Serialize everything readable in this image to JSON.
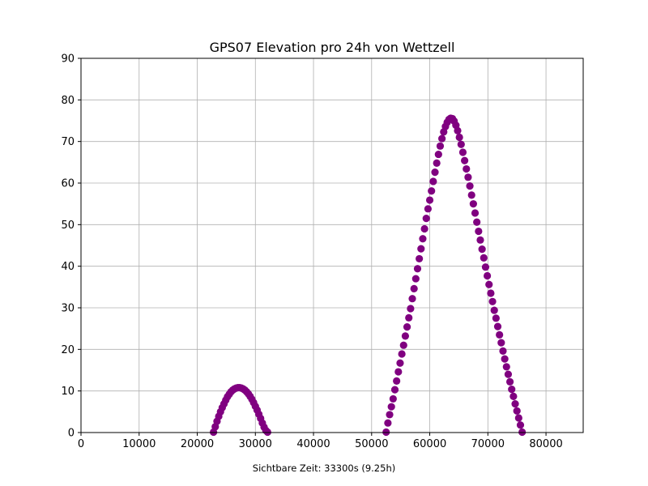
{
  "chart_data": {
    "type": "scatter",
    "title": "GPS07 Elevation pro 24h von Wettzell",
    "xlabel": "",
    "ylabel": "",
    "footer_text": "Sichtbare Zeit: 33300s (9.25h)",
    "xlim": [
      0,
      86400
    ],
    "ylim": [
      0,
      90
    ],
    "x_ticks": [
      0,
      10000,
      20000,
      30000,
      40000,
      50000,
      60000,
      70000,
      80000
    ],
    "y_ticks": [
      0,
      10,
      20,
      30,
      40,
      50,
      60,
      70,
      80,
      90
    ],
    "grid": true,
    "marker_color": "#800080",
    "series": [
      {
        "segments": [
          {
            "x": [
              22800,
              23100,
              23400,
              23700,
              24000,
              24300,
              24600,
              24900,
              25200,
              25500,
              25800,
              26100,
              26400,
              26700,
              27000,
              27300,
              27600,
              27900,
              28200,
              28500,
              28800,
              29100,
              29400,
              29700,
              30000,
              30300,
              30600,
              30900,
              31200,
              31500,
              31800,
              32100
            ],
            "y": [
              0.1,
              1.4,
              2.7,
              3.9,
              5.0,
              6.0,
              6.9,
              7.8,
              8.6,
              9.2,
              9.8,
              10.2,
              10.5,
              10.7,
              10.8,
              10.8,
              10.7,
              10.5,
              10.2,
              9.8,
              9.3,
              8.7,
              8.0,
              7.2,
              6.3,
              5.4,
              4.4,
              3.4,
              2.3,
              1.3,
              0.5,
              0.1
            ]
          },
          {
            "x": [
              52500,
              52800,
              53100,
              53400,
              53700,
              54000,
              54300,
              54600,
              54900,
              55200,
              55500,
              55800,
              56100,
              56400,
              56700,
              57000,
              57300,
              57600,
              57900,
              58200,
              58500,
              58800,
              59100,
              59400,
              59700,
              60000,
              60300,
              60600,
              60900,
              61200,
              61500,
              61800,
              62100,
              62400,
              62700,
              63000,
              63300,
              63600,
              63900,
              64200,
              64500,
              64800,
              65100,
              65400,
              65700,
              66000,
              66300,
              66600,
              66900,
              67200,
              67500,
              67800,
              68100,
              68400,
              68700,
              69000,
              69300,
              69600,
              69900,
              70200,
              70500,
              70800,
              71100,
              71400,
              71700,
              72000,
              72300,
              72600,
              72900,
              73200,
              73500,
              73800,
              74100,
              74400,
              74700,
              75000,
              75300,
              75600,
              75900
            ],
            "y": [
              0.1,
              2.3,
              4.3,
              6.2,
              8.1,
              10.3,
              12.4,
              14.6,
              16.7,
              18.9,
              21.0,
              23.2,
              25.4,
              27.6,
              29.8,
              32.2,
              34.6,
              37.0,
              39.4,
              41.8,
              44.2,
              46.6,
              49.0,
              51.5,
              53.8,
              55.9,
              58.1,
              60.4,
              62.6,
              64.8,
              66.9,
              68.9,
              70.7,
              72.3,
              73.6,
              74.6,
              75.3,
              75.6,
              75.5,
              74.9,
              73.9,
              72.6,
              71.0,
              69.3,
              67.4,
              65.4,
              63.4,
              61.4,
              59.3,
              57.1,
              55.0,
              52.8,
              50.6,
              48.4,
              46.3,
              44.1,
              42.0,
              39.8,
              37.7,
              35.6,
              33.5,
              31.5,
              29.4,
              27.5,
              25.5,
              23.5,
              21.6,
              19.6,
              17.7,
              15.8,
              14.0,
              12.2,
              10.4,
              8.7,
              6.9,
              5.2,
              3.5,
              1.8,
              0.1
            ]
          }
        ]
      }
    ]
  }
}
